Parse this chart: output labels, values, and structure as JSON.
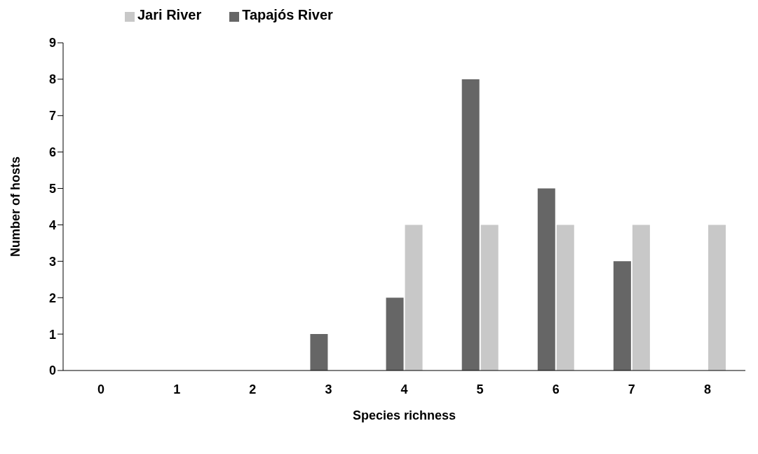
{
  "chart_data": {
    "type": "bar",
    "xlabel": "Species richness",
    "ylabel": "Number of hosts",
    "categories": [
      "0",
      "1",
      "2",
      "3",
      "4",
      "5",
      "6",
      "7",
      "8"
    ],
    "series": [
      {
        "name": "Tapajós River",
        "color": "#666666",
        "values": [
          0,
          0,
          0,
          1,
          2,
          8,
          5,
          3,
          0
        ]
      },
      {
        "name": "Jari River",
        "color": "#c8c8c8",
        "values": [
          0,
          0,
          0,
          0,
          4,
          4,
          4,
          4,
          4
        ]
      }
    ],
    "ylim": [
      0,
      9
    ],
    "yticks": [
      0,
      1,
      2,
      3,
      4,
      5,
      6,
      7,
      8,
      9
    ],
    "grid": false,
    "legend": "top left"
  }
}
